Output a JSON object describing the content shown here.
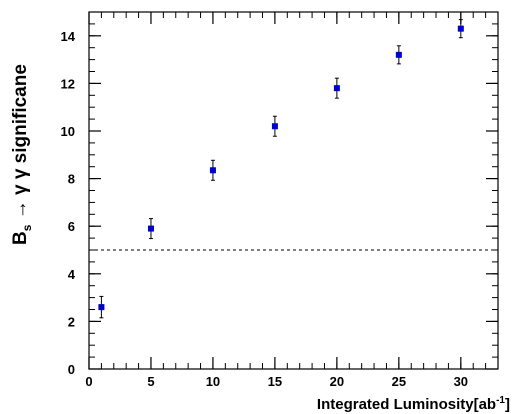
{
  "chart_data": {
    "type": "scatter",
    "xlabel_main": "Integrated Luminosity[ab",
    "xlabel_sup": "-1",
    "xlabel_end": "]",
    "ylabel_B": "B",
    "ylabel_sub": "s",
    "ylabel_rest": " → γ γ significane",
    "xlim": [
      0,
      33
    ],
    "ylim": [
      0,
      15
    ],
    "x_ticks": [
      0,
      5,
      10,
      15,
      20,
      25,
      30
    ],
    "y_ticks": [
      0,
      2,
      4,
      6,
      8,
      10,
      12,
      14
    ],
    "x_minor_step": 1,
    "y_minor_step": 0.5,
    "reference_line_y": 5,
    "marker_color": "#0000cc",
    "series": [
      {
        "points": [
          {
            "x": 1,
            "y": 2.6,
            "err": 0.45
          },
          {
            "x": 5,
            "y": 5.9,
            "err": 0.42
          },
          {
            "x": 10,
            "y": 8.35,
            "err": 0.42
          },
          {
            "x": 15,
            "y": 10.2,
            "err": 0.42
          },
          {
            "x": 20,
            "y": 11.8,
            "err": 0.42
          },
          {
            "x": 25,
            "y": 13.2,
            "err": 0.38
          },
          {
            "x": 30,
            "y": 14.3,
            "err": 0.38
          }
        ]
      }
    ]
  }
}
